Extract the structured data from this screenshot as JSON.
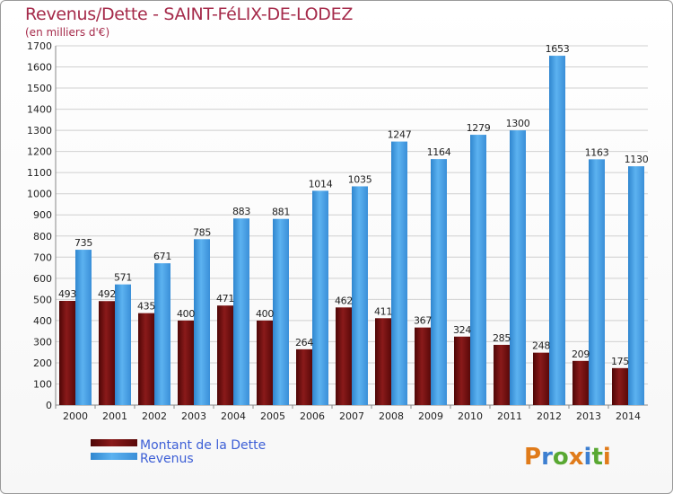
{
  "header": {
    "title": "Revenus/Dette - SAINT-FéLIX-DE-LODEZ",
    "subtitle": "(en milliers d'€)"
  },
  "logo": {
    "text": "Proxiti"
  },
  "colors": {
    "debt": "#7a1010",
    "revenue": "#4aa3e8",
    "grid": "#d0d0d0"
  },
  "chart_data": {
    "type": "bar",
    "categories": [
      "2000",
      "2001",
      "2002",
      "2003",
      "2004",
      "2005",
      "2006",
      "2007",
      "2008",
      "2009",
      "2010",
      "2011",
      "2012",
      "2013",
      "2014"
    ],
    "series": [
      {
        "name": "Montant de la Dette",
        "values": [
          493,
          492,
          435,
          400,
          471,
          400,
          264,
          462,
          411,
          367,
          324,
          285,
          248,
          209,
          175
        ]
      },
      {
        "name": "Revenus",
        "values": [
          735,
          571,
          671,
          785,
          883,
          881,
          1014,
          1035,
          1247,
          1164,
          1279,
          1300,
          1653,
          1163,
          1130
        ]
      }
    ],
    "ylim": [
      0,
      1700
    ],
    "ytick_step": 100,
    "grid": true,
    "legend_position": "bottom-left"
  }
}
